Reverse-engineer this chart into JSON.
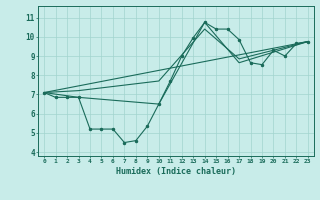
{
  "xlabel": "Humidex (Indice chaleur)",
  "xlim": [
    -0.5,
    23.5
  ],
  "ylim": [
    3.8,
    11.6
  ],
  "yticks": [
    4,
    5,
    6,
    7,
    8,
    9,
    10,
    11
  ],
  "xticks": [
    0,
    1,
    2,
    3,
    4,
    5,
    6,
    7,
    8,
    9,
    10,
    11,
    12,
    13,
    14,
    15,
    16,
    17,
    18,
    19,
    20,
    21,
    22,
    23
  ],
  "bg_color": "#c8ece9",
  "grid_color": "#a2d4ce",
  "line_color": "#1a6b5a",
  "line1_x": [
    0,
    1,
    2,
    3,
    4,
    5,
    6,
    7,
    8,
    9,
    10,
    11,
    12,
    13,
    14,
    15,
    16,
    17,
    18,
    19,
    20,
    21,
    22,
    23
  ],
  "line1_y": [
    7.1,
    6.85,
    6.85,
    6.85,
    5.2,
    5.2,
    5.2,
    4.5,
    4.6,
    5.35,
    6.5,
    7.7,
    9.0,
    9.95,
    10.75,
    10.4,
    10.4,
    9.85,
    8.65,
    8.55,
    9.3,
    9.0,
    9.65,
    9.75
  ],
  "line3_x": [
    0,
    23
  ],
  "line3_y": [
    7.1,
    9.75
  ],
  "line4_x": [
    0,
    3,
    10,
    14,
    17,
    23
  ],
  "line4_y": [
    7.1,
    6.85,
    6.5,
    10.75,
    8.65,
    9.75
  ],
  "line5_x": [
    0,
    3,
    10,
    14,
    17,
    23
  ],
  "line5_y": [
    7.1,
    7.2,
    7.7,
    10.4,
    8.85,
    9.75
  ]
}
